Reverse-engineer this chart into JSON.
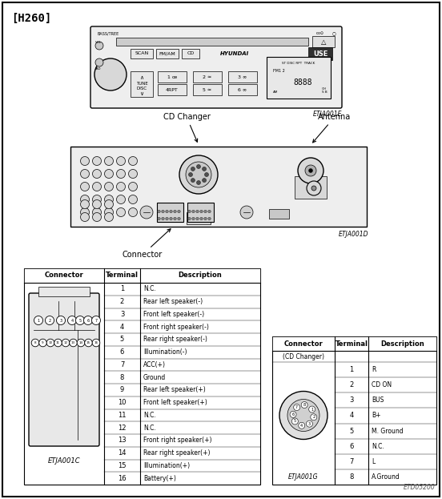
{
  "title": "[H260]",
  "bg_color": "#ffffff",
  "radio_label": "ETJA001E",
  "back_label": "ETJA001D",
  "connector_label": "ETJA001C",
  "cd_changer_label": "ETJA001G",
  "page_label": "ETD05200",
  "cd_changer_text": "CD Changer",
  "antenna_text": "Antenna",
  "connector_text": "Connector",
  "table1_headers": [
    "Connector",
    "Terminal",
    "Description"
  ],
  "table1_terminals": [
    1,
    2,
    3,
    4,
    5,
    6,
    7,
    8,
    9,
    10,
    11,
    12,
    13,
    14,
    15,
    16
  ],
  "table1_descriptions": [
    "N.C.",
    "Rear left speaker(-)",
    "Front left speaker(-)",
    "Front right speaker(-)",
    "Rear right speaker(-)",
    "Illumination(-)",
    "ACC(+)",
    "Ground",
    "Rear left speaker(+)",
    "Front left speaker(+)",
    "N.C.",
    "N.C.",
    "Front right speaker(+)",
    "Rear right speaker(+)",
    "Illumination(+)",
    "Battery(+)"
  ],
  "table2_headers": [
    "Connector",
    "Terminal",
    "Description"
  ],
  "table2_connector_label": "(CD Changer)",
  "table2_terminals": [
    1,
    2,
    3,
    4,
    5,
    6,
    7,
    8
  ],
  "table2_descriptions": [
    "R",
    "CD ON",
    "BUS",
    "B+",
    "M. Ground",
    "N.C.",
    "L",
    "A.Ground"
  ]
}
